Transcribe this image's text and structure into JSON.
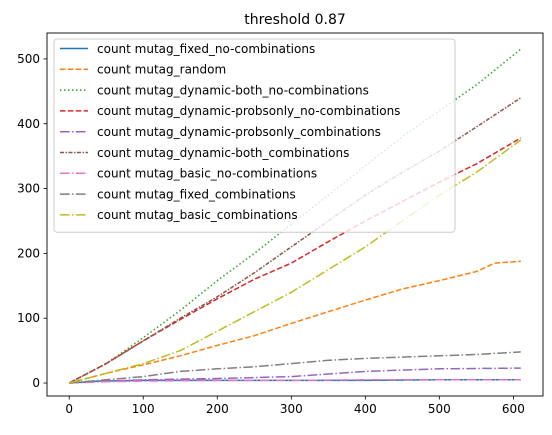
{
  "chart_data": {
    "type": "line",
    "title": "threshold 0.87",
    "xlabel": "",
    "ylabel": "",
    "xlim": [
      -30,
      640
    ],
    "ylim": [
      -20,
      540
    ],
    "xticks": [
      0,
      100,
      200,
      300,
      400,
      500,
      600
    ],
    "yticks": [
      0,
      100,
      200,
      300,
      400,
      500
    ],
    "grid": false,
    "legend_position": "upper-left",
    "series": [
      {
        "name": "count mutag_fixed_no-combinations",
        "color": "#1f77b4",
        "dash": "solid",
        "points": [
          [
            0,
            0
          ],
          [
            40,
            3
          ],
          [
            100,
            4
          ],
          [
            200,
            4
          ],
          [
            300,
            4
          ],
          [
            400,
            4
          ],
          [
            500,
            5
          ],
          [
            610,
            5
          ]
        ]
      },
      {
        "name": "count mutag_random",
        "color": "#ff7f0e",
        "dash": "dashed",
        "points": [
          [
            0,
            0
          ],
          [
            50,
            15
          ],
          [
            100,
            28
          ],
          [
            150,
            42
          ],
          [
            200,
            58
          ],
          [
            250,
            73
          ],
          [
            300,
            92
          ],
          [
            350,
            110
          ],
          [
            400,
            128
          ],
          [
            450,
            145
          ],
          [
            500,
            158
          ],
          [
            550,
            172
          ],
          [
            575,
            185
          ],
          [
            610,
            188
          ]
        ]
      },
      {
        "name": "count mutag_dynamic-both_no-combinations",
        "color": "#2ca02c",
        "dash": "dotted",
        "points": [
          [
            0,
            0
          ],
          [
            50,
            30
          ],
          [
            100,
            70
          ],
          [
            150,
            112
          ],
          [
            200,
            158
          ],
          [
            250,
            200
          ],
          [
            300,
            245
          ],
          [
            350,
            290
          ],
          [
            400,
            335
          ],
          [
            450,
            380
          ],
          [
            500,
            420
          ],
          [
            550,
            460
          ],
          [
            610,
            515
          ]
        ]
      },
      {
        "name": "count mutag_dynamic-probsonly_no-combinations",
        "color": "#d62728",
        "dash": "dashed",
        "points": [
          [
            0,
            0
          ],
          [
            50,
            30
          ],
          [
            100,
            65
          ],
          [
            150,
            98
          ],
          [
            200,
            130
          ],
          [
            250,
            160
          ],
          [
            300,
            185
          ],
          [
            350,
            218
          ],
          [
            400,
            250
          ],
          [
            450,
            280
          ],
          [
            500,
            310
          ],
          [
            550,
            338
          ],
          [
            610,
            378
          ]
        ]
      },
      {
        "name": "count mutag_dynamic-probsonly_combinations",
        "color": "#9467bd",
        "dash": "dashdot",
        "points": [
          [
            0,
            0
          ],
          [
            50,
            3
          ],
          [
            100,
            5
          ],
          [
            200,
            7
          ],
          [
            300,
            10
          ],
          [
            350,
            14
          ],
          [
            400,
            18
          ],
          [
            450,
            20
          ],
          [
            500,
            22
          ],
          [
            610,
            23
          ]
        ]
      },
      {
        "name": "count mutag_dynamic-both_combinations",
        "color": "#8c564b",
        "dash": "densedashdot",
        "points": [
          [
            0,
            0
          ],
          [
            50,
            30
          ],
          [
            100,
            65
          ],
          [
            150,
            100
          ],
          [
            200,
            133
          ],
          [
            250,
            170
          ],
          [
            300,
            210
          ],
          [
            350,
            250
          ],
          [
            400,
            290
          ],
          [
            450,
            325
          ],
          [
            500,
            358
          ],
          [
            550,
            395
          ],
          [
            610,
            440
          ]
        ]
      },
      {
        "name": "count mutag_basic_no-combinations",
        "color": "#e377c2",
        "dash": "dashdot",
        "points": [
          [
            0,
            0
          ],
          [
            50,
            2
          ],
          [
            100,
            3
          ],
          [
            200,
            4
          ],
          [
            300,
            4
          ],
          [
            400,
            5
          ],
          [
            500,
            5
          ],
          [
            610,
            5
          ]
        ]
      },
      {
        "name": "count mutag_fixed_combinations",
        "color": "#7f7f7f",
        "dash": "dashdot",
        "points": [
          [
            0,
            0
          ],
          [
            50,
            5
          ],
          [
            100,
            10
          ],
          [
            150,
            18
          ],
          [
            200,
            22
          ],
          [
            250,
            25
          ],
          [
            300,
            30
          ],
          [
            350,
            35
          ],
          [
            400,
            38
          ],
          [
            450,
            40
          ],
          [
            500,
            42
          ],
          [
            550,
            44
          ],
          [
            610,
            48
          ]
        ]
      },
      {
        "name": "count mutag_basic_combinations",
        "color": "#bcbd22",
        "dash": "dashdot",
        "points": [
          [
            0,
            0
          ],
          [
            50,
            15
          ],
          [
            100,
            30
          ],
          [
            150,
            50
          ],
          [
            200,
            80
          ],
          [
            250,
            110
          ],
          [
            300,
            140
          ],
          [
            350,
            175
          ],
          [
            400,
            210
          ],
          [
            450,
            250
          ],
          [
            500,
            290
          ],
          [
            550,
            325
          ],
          [
            610,
            375
          ]
        ]
      }
    ]
  }
}
